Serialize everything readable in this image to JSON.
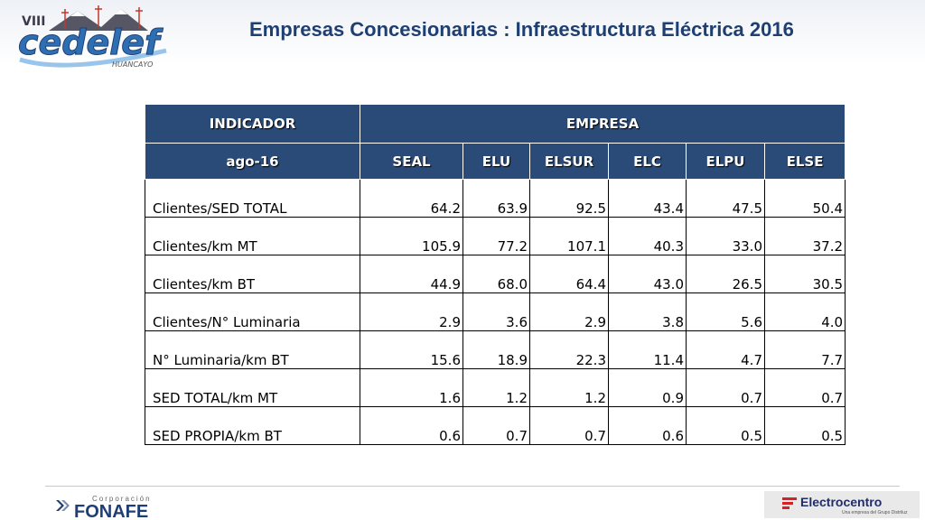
{
  "header": {
    "title": "Empresas Concesionarias : Infraestructura Eléctrica 2016",
    "logo": {
      "roman": "VIII",
      "name": "cedelef",
      "city": "HUANCAYO"
    }
  },
  "table": {
    "indicator_header": "INDICADOR",
    "company_header": "EMPRESA",
    "period": "ago-16",
    "columns": [
      "SEAL",
      "ELU",
      "ELSUR",
      "ELC",
      "ELPU",
      "ELSE"
    ],
    "rows": [
      {
        "label": "Clientes/SED TOTAL",
        "values": [
          "64.2",
          "63.9",
          "92.5",
          "43.4",
          "47.5",
          "50.4"
        ]
      },
      {
        "label": "Clientes/km MT",
        "values": [
          "105.9",
          "77.2",
          "107.1",
          "40.3",
          "33.0",
          "37.2"
        ]
      },
      {
        "label": "Clientes/km BT",
        "values": [
          "44.9",
          "68.0",
          "64.4",
          "43.0",
          "26.5",
          "30.5"
        ]
      },
      {
        "label": "Clientes/N° Luminaria",
        "values": [
          "2.9",
          "3.6",
          "2.9",
          "3.8",
          "5.6",
          "4.0"
        ]
      },
      {
        "label": "N° Luminaria/km BT",
        "values": [
          "15.6",
          "18.9",
          "22.3",
          "11.4",
          "4.7",
          "7.7"
        ]
      },
      {
        "label": "SED TOTAL/km MT",
        "values": [
          "1.6",
          "1.2",
          "1.2",
          "0.9",
          "0.7",
          "0.7"
        ]
      },
      {
        "label": "SED PROPIA/km BT",
        "values": [
          "0.6",
          "0.7",
          "0.7",
          "0.6",
          "0.5",
          "0.5"
        ]
      }
    ]
  },
  "footer": {
    "fonafe": {
      "small": "Corporación",
      "big": "FONAFE"
    },
    "electrocentro": {
      "name": "Electrocentro",
      "tagline": "Una empresa del Grupo Distriluz"
    }
  },
  "colors": {
    "title": "#1f3f73",
    "table_header_bg": "#2a4a78",
    "logo_blue": "#2e6fb3",
    "fonafe_blue": "#1f3f73",
    "electro_red": "#d62128"
  },
  "icons": [
    "edelef-logo",
    "fonafe-arrow-icon",
    "electrocentro-flag-icon"
  ]
}
